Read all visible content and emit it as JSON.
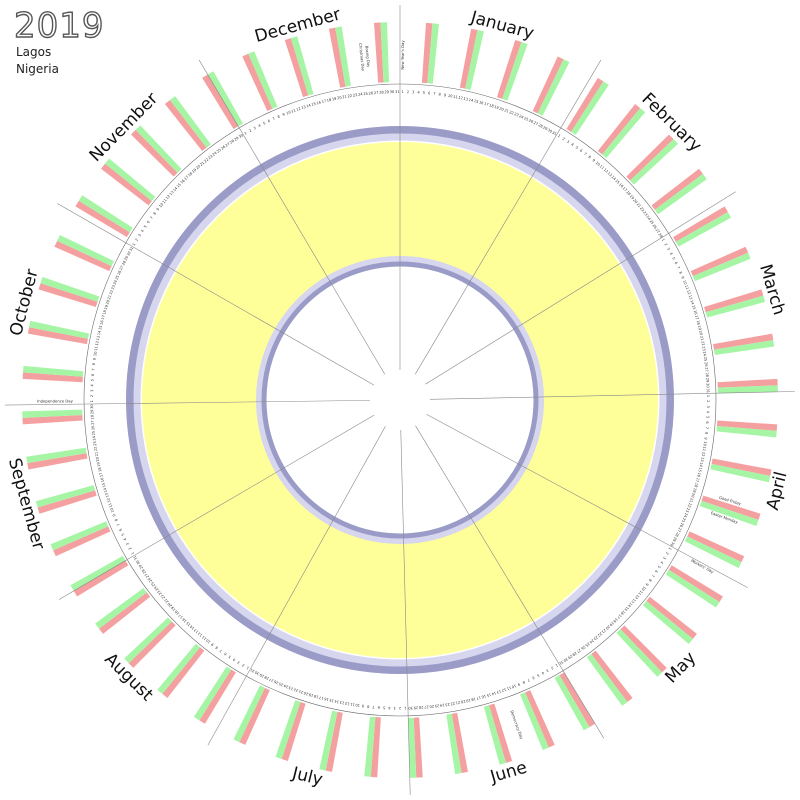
{
  "header": {
    "year": "2019",
    "city": "Lagos",
    "country": "Nigeria"
  },
  "months": [
    "January",
    "February",
    "March",
    "April",
    "May",
    "June",
    "July",
    "August",
    "September",
    "October",
    "November",
    "December"
  ],
  "month_days": [
    31,
    28,
    31,
    30,
    31,
    30,
    31,
    31,
    30,
    31,
    30,
    31
  ],
  "year_start_weekday": 2,
  "colors": {
    "weekend_red": "#f5a0a0",
    "weekend_green": "#a5f5a5",
    "ring_yellow": "#ffff99",
    "ring_blue": "#9b9bc8",
    "ring_light": "#d6d6ee",
    "divider": "#888888"
  },
  "holidays": [
    {
      "label": "New Year's Day",
      "month": 1,
      "day": 1
    },
    {
      "label": "Good Friday",
      "month": 4,
      "day": 19
    },
    {
      "label": "Easter Monday",
      "month": 4,
      "day": 22
    },
    {
      "label": "Workers' Day",
      "month": 5,
      "day": 1
    },
    {
      "label": "Democracy Day",
      "month": 6,
      "day": 12
    },
    {
      "label": "Independence Day",
      "month": 10,
      "day": 1
    },
    {
      "label": "Christmas Day",
      "month": 12,
      "day": 25
    },
    {
      "label": "Boxing Day",
      "month": 12,
      "day": 26
    }
  ]
}
